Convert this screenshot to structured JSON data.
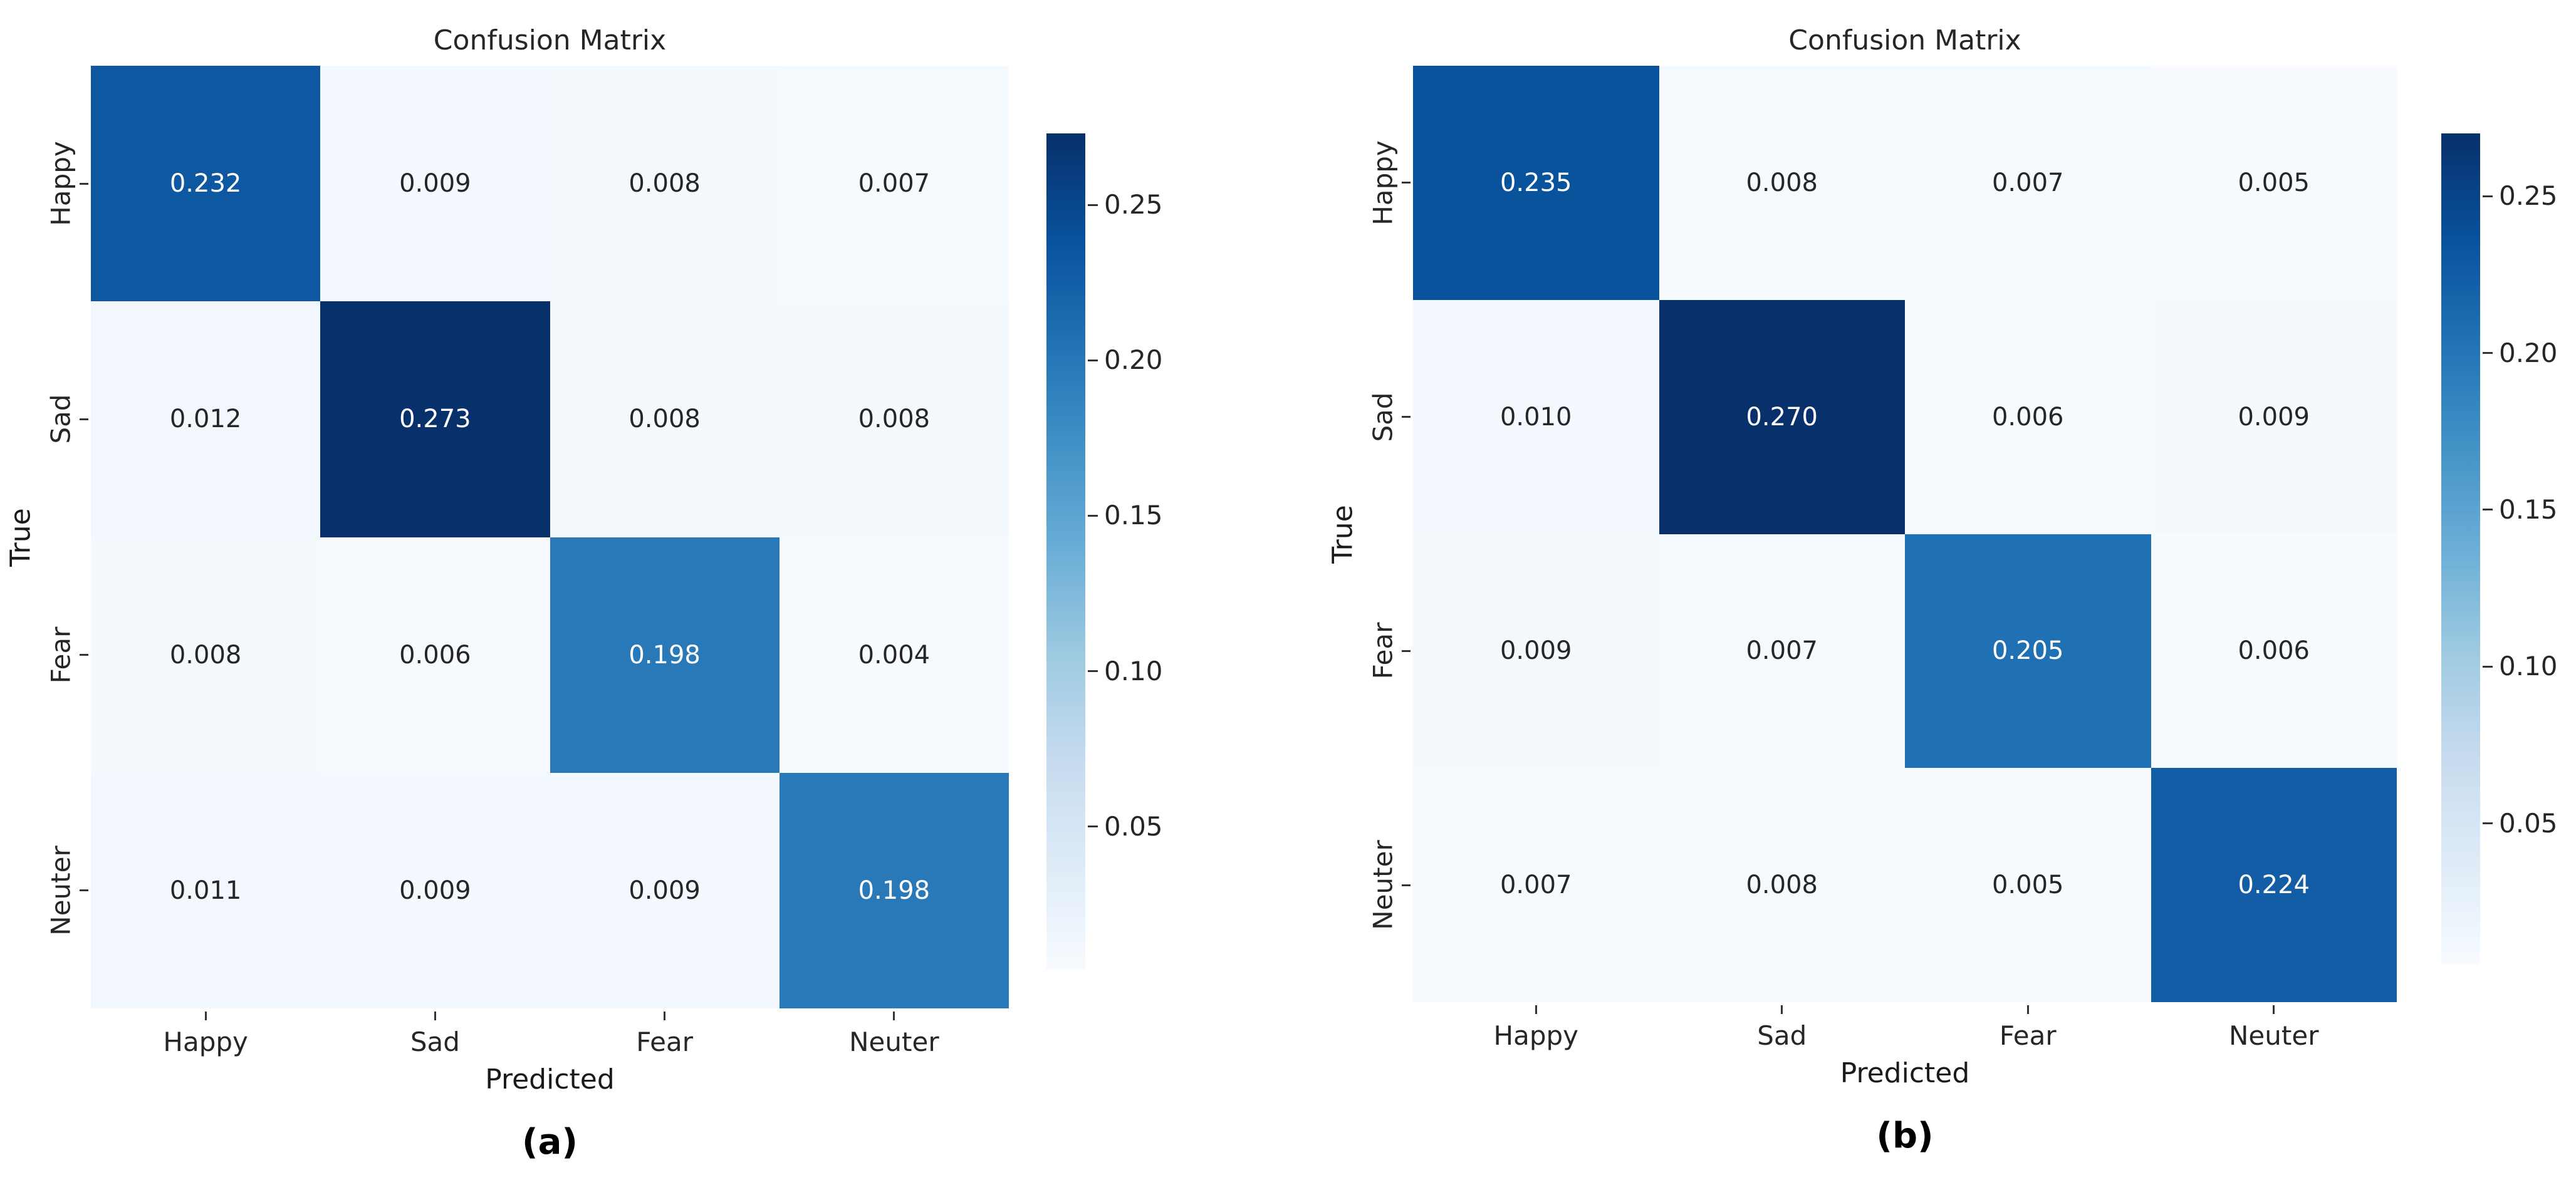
{
  "figure": {
    "description": "Two side-by-side normalized confusion matrix heatmaps",
    "colors": {
      "background": "#ffffff",
      "colormap_name": "Blues",
      "colormap_stops": [
        "#f7fbff",
        "#deebf7",
        "#c6dbef",
        "#9ecae1",
        "#6baed6",
        "#4292c6",
        "#2171b5",
        "#08519c",
        "#08306b"
      ],
      "annotation_on_dark": "#ffffff",
      "annotation_on_light": "#262626",
      "tick_color": "#262626",
      "axis_label_color": "#1a1a1a",
      "caption_color": "#000000"
    }
  },
  "chart_data": [
    {
      "type": "heatmap",
      "caption": "(a)",
      "title": "Confusion Matrix",
      "xlabel": "Predicted",
      "ylabel": "True",
      "x_categories": [
        "Happy",
        "Sad",
        "Fear",
        "Neuter"
      ],
      "y_categories": [
        "Happy",
        "Sad",
        "Fear",
        "Neuter"
      ],
      "values": [
        [
          0.232,
          0.009,
          0.008,
          0.007
        ],
        [
          0.012,
          0.273,
          0.008,
          0.008
        ],
        [
          0.008,
          0.006,
          0.198,
          0.004
        ],
        [
          0.011,
          0.009,
          0.009,
          0.198
        ]
      ],
      "value_decimals": 3,
      "colormap": "Blues",
      "colorbar_tick_labels": [
        "0.25",
        "0.20",
        "0.15",
        "0.10",
        "0.05"
      ],
      "colorbar_tick_values": [
        0.25,
        0.2,
        0.15,
        0.1,
        0.05
      ],
      "legend_position": "right-colorbar",
      "grid": false
    },
    {
      "type": "heatmap",
      "caption": "(b)",
      "title": "Confusion Matrix",
      "xlabel": "Predicted",
      "ylabel": "True",
      "x_categories": [
        "Happy",
        "Sad",
        "Fear",
        "Neuter"
      ],
      "y_categories": [
        "Happy",
        "Sad",
        "Fear",
        "Neuter"
      ],
      "values": [
        [
          0.235,
          0.008,
          0.007,
          0.005
        ],
        [
          0.01,
          0.27,
          0.006,
          0.009
        ],
        [
          0.009,
          0.007,
          0.205,
          0.006
        ],
        [
          0.007,
          0.008,
          0.005,
          0.224
        ]
      ],
      "value_decimals": 3,
      "colormap": "Blues",
      "colorbar_tick_labels": [
        "0.25",
        "0.20",
        "0.15",
        "0.10",
        "0.05"
      ],
      "colorbar_tick_values": [
        0.25,
        0.2,
        0.15,
        0.1,
        0.05
      ],
      "legend_position": "right-colorbar",
      "grid": false
    }
  ]
}
